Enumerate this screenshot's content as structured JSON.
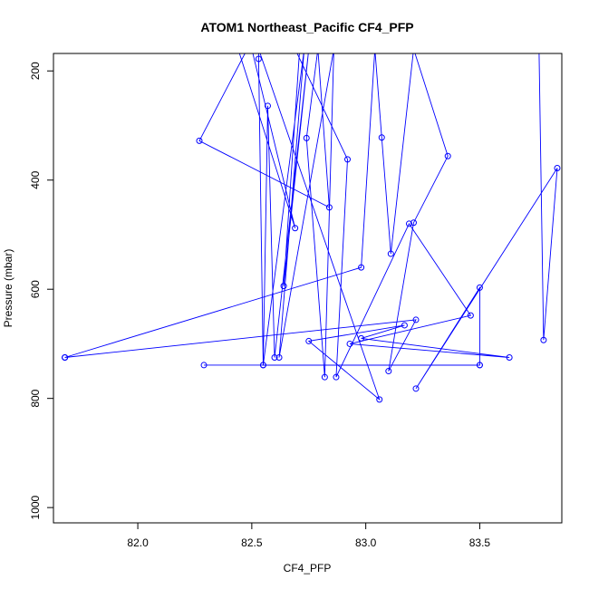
{
  "chart_data": {
    "type": "line",
    "title": "ATOM1 Northeast_Pacific CF4_PFP",
    "xlabel": "CF4_PFP",
    "ylabel": "Pressure (mbar)",
    "xlim": [
      81.63,
      83.86
    ],
    "ylim": [
      1028,
      168
    ],
    "y_reversed": true,
    "x_ticks": [
      82.0,
      82.5,
      83.0,
      83.5
    ],
    "x_tick_labels": [
      "82.0",
      "82.5",
      "83.0",
      "83.5"
    ],
    "y_ticks": [
      200,
      400,
      600,
      800,
      1000
    ],
    "y_tick_labels": [
      "200",
      "400",
      "600",
      "800",
      "1000"
    ],
    "grid": false,
    "series": [
      {
        "color": "#0000ff",
        "marker": "open-circle",
        "points": [
          {
            "x": 82.5,
            "y": 160,
            "marker": false
          },
          {
            "x": 82.69,
            "y": 488,
            "marker": true
          },
          {
            "x": 82.44,
            "y": 160,
            "marker": false
          },
          {
            "x": 82.71,
            "y": 160,
            "marker": false
          },
          {
            "x": 82.64,
            "y": 594,
            "marker": true
          },
          {
            "x": 82.75,
            "y": 160,
            "marker": false
          },
          {
            "x": 82.6,
            "y": 725,
            "marker": true
          },
          {
            "x": 82.57,
            "y": 264,
            "marker": true
          },
          {
            "x": 82.55,
            "y": 739,
            "marker": true
          },
          {
            "x": 82.73,
            "y": 160,
            "marker": false
          },
          {
            "x": 82.62,
            "y": 725,
            "marker": true
          },
          {
            "x": 82.86,
            "y": 160,
            "marker": false
          },
          {
            "x": 82.82,
            "y": 761,
            "marker": true
          },
          {
            "x": 82.74,
            "y": 323,
            "marker": true
          },
          {
            "x": 82.79,
            "y": 160,
            "marker": false
          },
          {
            "x": 82.84,
            "y": 450,
            "marker": true
          },
          {
            "x": 82.27,
            "y": 328,
            "marker": true
          },
          {
            "x": 82.48,
            "y": 160,
            "marker": false
          },
          {
            "x": 82.69,
            "y": 160,
            "marker": false
          },
          {
            "x": 82.92,
            "y": 362,
            "marker": true
          },
          {
            "x": 82.87,
            "y": 761,
            "marker": true
          },
          {
            "x": 83.19,
            "y": 480,
            "marker": true
          },
          {
            "x": 83.46,
            "y": 648,
            "marker": true
          },
          {
            "x": 82.93,
            "y": 700,
            "marker": true
          },
          {
            "x": 83.63,
            "y": 725,
            "marker": true
          },
          {
            "x": 82.98,
            "y": 690,
            "marker": true
          },
          {
            "x": 83.17,
            "y": 666,
            "marker": true
          },
          {
            "x": 82.75,
            "y": 695,
            "marker": true
          },
          {
            "x": 83.06,
            "y": 802,
            "marker": true
          },
          {
            "x": 82.53,
            "y": 160,
            "marker": false
          },
          {
            "x": 82.53,
            "y": 178,
            "marker": true
          },
          {
            "x": 82.55,
            "y": 739,
            "marker": true
          },
          {
            "x": 83.5,
            "y": 739,
            "marker": true
          },
          {
            "x": 83.5,
            "y": 597,
            "marker": true
          },
          {
            "x": 83.22,
            "y": 782,
            "marker": true
          },
          {
            "x": 83.84,
            "y": 378,
            "marker": true
          },
          {
            "x": 83.78,
            "y": 693,
            "marker": true
          },
          {
            "x": 83.76,
            "y": 160,
            "marker": false
          }
        ]
      },
      {
        "color": "#0000ff",
        "marker": "open-circle",
        "points": [
          {
            "x": 82.29,
            "y": 739,
            "marker": true
          },
          {
            "x": 83.5,
            "y": 739,
            "marker": true
          }
        ]
      },
      {
        "color": "#0000ff",
        "marker": "open-circle",
        "points": [
          {
            "x": 81.68,
            "y": 725,
            "marker": true
          },
          {
            "x": 82.98,
            "y": 560,
            "marker": true
          },
          {
            "x": 83.04,
            "y": 160,
            "marker": false
          },
          {
            "x": 83.07,
            "y": 322,
            "marker": true
          },
          {
            "x": 83.11,
            "y": 535,
            "marker": true
          },
          {
            "x": 83.21,
            "y": 160,
            "marker": false
          },
          {
            "x": 83.36,
            "y": 356,
            "marker": true
          },
          {
            "x": 83.21,
            "y": 478,
            "marker": true
          },
          {
            "x": 83.1,
            "y": 750,
            "marker": true
          },
          {
            "x": 83.22,
            "y": 656,
            "marker": true
          },
          {
            "x": 81.68,
            "y": 725,
            "marker": true
          }
        ]
      }
    ]
  }
}
